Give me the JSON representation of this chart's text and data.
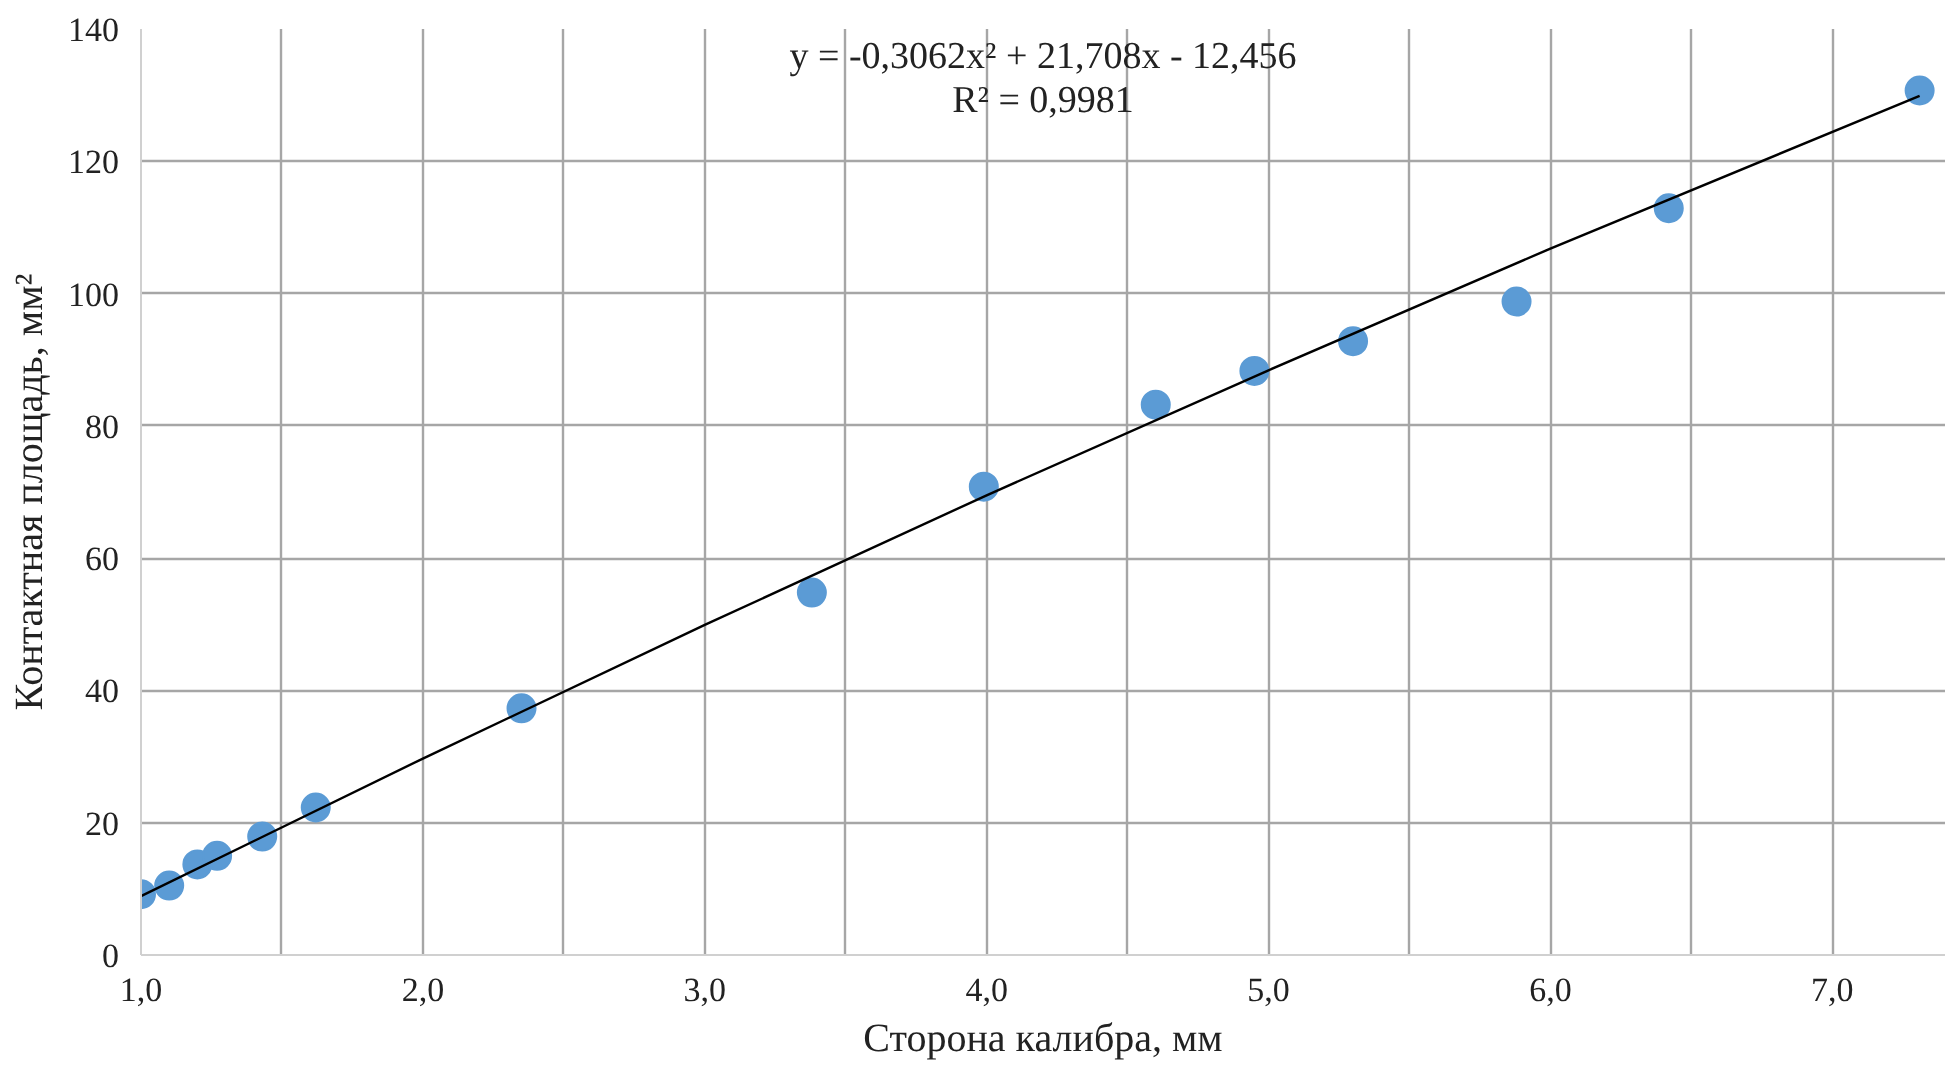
{
  "chart_data": {
    "type": "scatter",
    "xlabel": "Сторона калибра, мм",
    "ylabel": "Контактная площадь, мм²",
    "annotations": [
      "y = -0,3062x² + 21,708x - 12,456",
      "R² = 0,9981"
    ],
    "series": [
      {
        "color": "#5b9bd5",
        "marker": "circle",
        "x": [
          1.0,
          1.1,
          1.2,
          1.27,
          1.43,
          1.62,
          2.35,
          3.38,
          3.99,
          4.6,
          4.95,
          5.3,
          5.88,
          6.42,
          7.31
        ],
        "values": [
          9.2,
          10.5,
          13.7,
          15.0,
          17.9,
          22.3,
          37.3,
          54.8,
          70.8,
          83.2,
          88.3,
          92.8,
          98.8,
          112.9,
          130.7
        ]
      },
      {
        "type": "line",
        "color": "#000000",
        "line_style": "solid",
        "x": [
          1.0,
          2.0,
          3.0,
          4.0,
          5.0,
          6.0,
          7.31
        ],
        "values": [
          8.9,
          29.7,
          49.9,
          69.5,
          88.4,
          106.8,
          129.9
        ]
      }
    ],
    "xlim": [
      1.0,
      7.4
    ],
    "ylim": [
      0,
      140
    ],
    "xticks": [
      {
        "value": 1.0,
        "label": "1,0"
      },
      {
        "value": 1.5,
        "label": null
      },
      {
        "value": 2.0,
        "label": "2,0"
      },
      {
        "value": 2.5,
        "label": null
      },
      {
        "value": 3.0,
        "label": "3,0"
      },
      {
        "value": 3.5,
        "label": null
      },
      {
        "value": 4.0,
        "label": "4,0"
      },
      {
        "value": 4.5,
        "label": null
      },
      {
        "value": 5.0,
        "label": "5,0"
      },
      {
        "value": 5.5,
        "label": null
      },
      {
        "value": 6.0,
        "label": "6,0"
      },
      {
        "value": 6.5,
        "label": null
      },
      {
        "value": 7.0,
        "label": "7,0"
      }
    ],
    "yticks": [
      0,
      20,
      40,
      60,
      80,
      100,
      120,
      140
    ],
    "grid": true
  }
}
